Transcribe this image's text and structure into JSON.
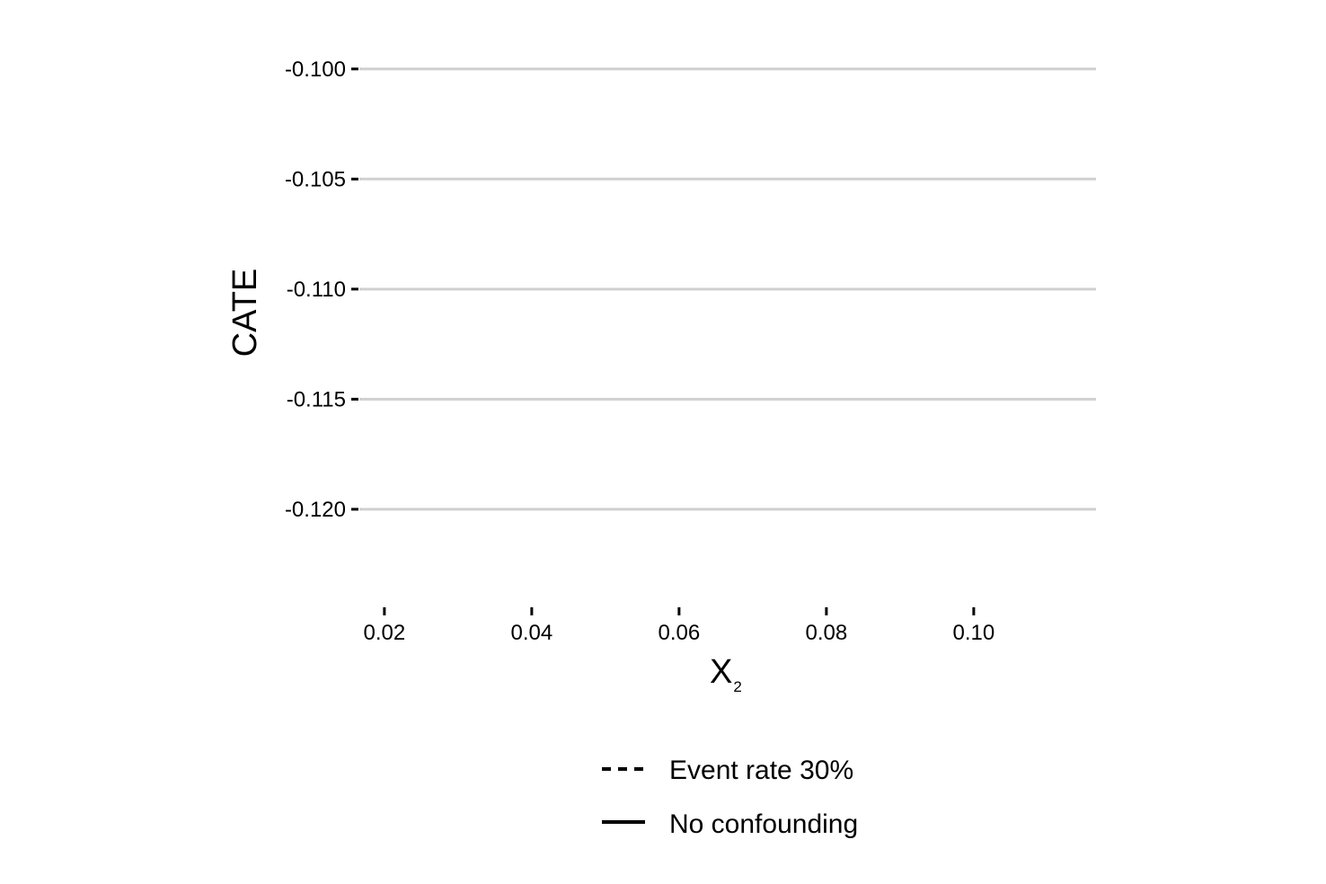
{
  "chart_data": {
    "type": "line",
    "xlabel": "X",
    "xlabel_subscript": "2",
    "ylabel": "CATE",
    "xlim": [
      0.0166,
      0.1166
    ],
    "ylim": [
      -0.1238,
      -0.0985
    ],
    "x_ticks": [
      0.02,
      0.04,
      0.06,
      0.08,
      0.1
    ],
    "x_tick_labels": [
      "0.02",
      "0.04",
      "0.06",
      "0.08",
      "0.10"
    ],
    "y_ticks": [
      -0.1,
      -0.105,
      -0.11,
      -0.115,
      -0.12
    ],
    "y_tick_labels": [
      "-0.100",
      "-0.105",
      "-0.110",
      "-0.115",
      "-0.120"
    ],
    "grid": "horizontal major",
    "legend_position": "bottom",
    "series": [
      {
        "name": "Event rate 30%",
        "linestyle": "dashed",
        "color": "#000000",
        "x": [],
        "y": []
      },
      {
        "name": "No confounding",
        "linestyle": "solid",
        "color": "#000000",
        "x": [],
        "y": []
      }
    ],
    "gridline_color": "#d0d0d0"
  }
}
